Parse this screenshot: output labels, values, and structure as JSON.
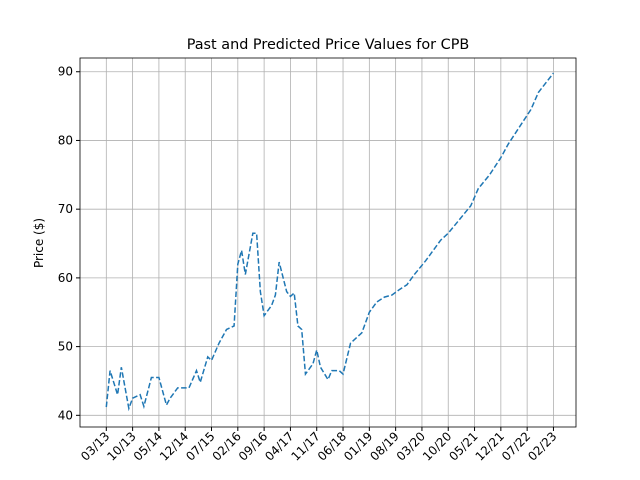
{
  "chart_data": {
    "type": "line",
    "title": "Past and Predicted Price Values for CPB",
    "y_label": "Price ($)",
    "x": [
      "2013-03",
      "2013-04",
      "2013-06",
      "2013-07",
      "2013-09",
      "2013-10",
      "2013-12",
      "2014-01",
      "2014-03",
      "2014-05",
      "2014-07",
      "2014-08",
      "2014-10",
      "2015-01",
      "2015-03",
      "2015-04",
      "2015-06",
      "2015-07",
      "2015-09",
      "2015-11",
      "2016-01",
      "2016-02",
      "2016-03",
      "2016-04",
      "2016-06",
      "2016-07",
      "2016-08",
      "2016-09",
      "2016-11",
      "2016-12",
      "2017-01",
      "2017-03",
      "2017-04",
      "2017-05",
      "2017-06",
      "2017-07",
      "2017-08",
      "2017-10",
      "2017-11",
      "2017-12",
      "2018-02",
      "2018-03",
      "2018-05",
      "2018-06",
      "2018-08",
      "2018-11",
      "2019-01",
      "2019-03",
      "2019-05",
      "2019-07",
      "2019-09",
      "2019-11",
      "2020-01",
      "2020-04",
      "2020-06",
      "2020-08",
      "2020-10",
      "2021-01",
      "2021-04",
      "2021-06",
      "2021-09",
      "2021-12",
      "2022-02",
      "2022-05",
      "2022-08",
      "2022-10",
      "2023-02"
    ],
    "series": [
      {
        "color": "#1f77b4",
        "dash": "5.5,2.4",
        "values": [
          41.2,
          46.5,
          43,
          47,
          41,
          42.5,
          43,
          41.3,
          45.5,
          45.5,
          41.5,
          42.5,
          44,
          44,
          46.5,
          44.8,
          48.5,
          48,
          50.5,
          52.5,
          53,
          62,
          64,
          60.5,
          66.5,
          66.5,
          58,
          54.5,
          56,
          57.5,
          62.3,
          58,
          57.3,
          57.8,
          53,
          52.5,
          46,
          47.5,
          49.5,
          47,
          45.2,
          46.5,
          46.5,
          46,
          50.5,
          52,
          55,
          56.5,
          57.2,
          57.5,
          58.3,
          59,
          60.5,
          62.5,
          64,
          65.5,
          66.5,
          68.5,
          70.5,
          73,
          75,
          77.5,
          79.5,
          82,
          84.5,
          87,
          89.8
        ]
      }
    ],
    "xlim": [
      "2012-08",
      "2023-08"
    ],
    "xticks": [
      {
        "value": "2013-03",
        "label": "03/13"
      },
      {
        "value": "2013-10",
        "label": "10/13"
      },
      {
        "value": "2014-05",
        "label": "05/14"
      },
      {
        "value": "2014-12",
        "label": "12/14"
      },
      {
        "value": "2015-07",
        "label": "07/15"
      },
      {
        "value": "2016-02",
        "label": "02/16"
      },
      {
        "value": "2016-09",
        "label": "09/16"
      },
      {
        "value": "2017-04",
        "label": "04/17"
      },
      {
        "value": "2017-11",
        "label": "11/17"
      },
      {
        "value": "2018-06",
        "label": "06/18"
      },
      {
        "value": "2019-01",
        "label": "01/19"
      },
      {
        "value": "2019-08",
        "label": "08/19"
      },
      {
        "value": "2020-03",
        "label": "03/20"
      },
      {
        "value": "2020-10",
        "label": "10/20"
      },
      {
        "value": "2021-05",
        "label": "05/21"
      },
      {
        "value": "2021-12",
        "label": "12/21"
      },
      {
        "value": "2022-07",
        "label": "07/22"
      },
      {
        "value": "2023-02",
        "label": "02/23"
      }
    ],
    "ylim": [
      38.3,
      92.0
    ],
    "yticks": [
      40,
      50,
      60,
      70,
      80,
      90
    ],
    "grid": true
  }
}
